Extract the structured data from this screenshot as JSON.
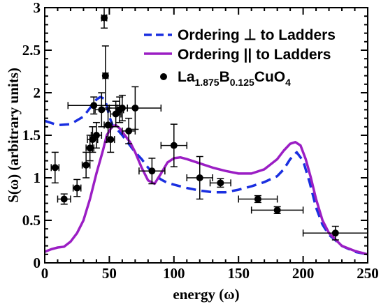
{
  "chart_data": {
    "type": "line",
    "xlabel": "energy (ω)",
    "ylabel": "S(ω) (arbitrary units)",
    "xlim": [
      0,
      250
    ],
    "ylim": [
      0,
      3
    ],
    "xticks": [
      "0",
      "50",
      "100",
      "150",
      "200",
      "250"
    ],
    "yticks": [
      "0",
      "0.5",
      "1",
      "1.5",
      "2",
      "2.5",
      "3"
    ],
    "grid": false,
    "legend_position": "top-right",
    "series": [
      {
        "name": "Ordering ⊥ to Ladders",
        "style": "dashed",
        "color": "#1a2fe0",
        "x": [
          0,
          10,
          20,
          30,
          35,
          40,
          43,
          46,
          48,
          50,
          53,
          56,
          60,
          65,
          70,
          75,
          80,
          85,
          90,
          95,
          100,
          110,
          120,
          130,
          140,
          150,
          160,
          170,
          180,
          185,
          190,
          195,
          200,
          205,
          210,
          215,
          220,
          230,
          240,
          250
        ],
        "y": [
          1.67,
          1.62,
          1.63,
          1.72,
          1.82,
          1.92,
          1.95,
          1.93,
          1.85,
          1.72,
          1.6,
          1.57,
          1.5,
          1.4,
          1.3,
          1.22,
          1.12,
          1.04,
          0.98,
          0.94,
          0.92,
          0.88,
          0.85,
          0.83,
          0.83,
          0.86,
          0.9,
          0.95,
          1.02,
          1.1,
          1.22,
          1.3,
          1.2,
          0.95,
          0.65,
          0.45,
          0.33,
          0.2,
          0.13,
          0.1
        ]
      },
      {
        "name": "Ordering || to Ladders",
        "style": "solid",
        "color": "#9b1ec4",
        "x": [
          0,
          5,
          10,
          15,
          20,
          25,
          30,
          35,
          40,
          45,
          48,
          52,
          55,
          58,
          62,
          66,
          70,
          75,
          80,
          85,
          90,
          95,
          100,
          105,
          110,
          120,
          130,
          140,
          150,
          160,
          170,
          180,
          185,
          190,
          194,
          198,
          202,
          206,
          210,
          215,
          220,
          230,
          240,
          250
        ],
        "y": [
          0.13,
          0.16,
          0.18,
          0.19,
          0.25,
          0.35,
          0.5,
          0.75,
          1.05,
          1.32,
          1.5,
          1.6,
          1.62,
          1.58,
          1.5,
          1.42,
          1.3,
          1.12,
          0.97,
          0.93,
          1.05,
          1.18,
          1.23,
          1.24,
          1.22,
          1.17,
          1.12,
          1.08,
          1.05,
          1.05,
          1.1,
          1.22,
          1.32,
          1.4,
          1.42,
          1.38,
          1.22,
          1.0,
          0.75,
          0.5,
          0.35,
          0.2,
          0.14,
          0.1
        ]
      },
      {
        "name": "La1.875B0.125CuO4",
        "style": "points",
        "color": "#000000",
        "legend_parts": [
          {
            "text": "La",
            "sub": false
          },
          {
            "text": "1.875",
            "sub": true
          },
          {
            "text": "B",
            "sub": false
          },
          {
            "text": "0.125",
            "sub": true
          },
          {
            "text": "CuO",
            "sub": false
          },
          {
            "text": "4",
            "sub": true
          }
        ],
        "points": [
          {
            "x": 8,
            "y": 1.12,
            "xerr": 3,
            "yerr": 0.18
          },
          {
            "x": 15,
            "y": 0.75,
            "xerr": 5,
            "yerr": 0.06
          },
          {
            "x": 25,
            "y": 0.88,
            "xerr": 3,
            "yerr": 0.1
          },
          {
            "x": 32,
            "y": 1.15,
            "xerr": 3,
            "yerr": 0.15
          },
          {
            "x": 35,
            "y": 1.35,
            "xerr": 3,
            "yerr": 0.15
          },
          {
            "x": 37,
            "y": 1.45,
            "xerr": 4,
            "yerr": 0.15
          },
          {
            "x": 38,
            "y": 1.85,
            "xerr": 20,
            "yerr": 0.1
          },
          {
            "x": 40,
            "y": 1.5,
            "xerr": 4,
            "yerr": 0.15
          },
          {
            "x": 44,
            "y": 1.8,
            "xerr": 5,
            "yerr": 0.2
          },
          {
            "x": 46,
            "y": 2.88,
            "xerr": 2,
            "yerr": 0.12
          },
          {
            "x": 47,
            "y": 2.2,
            "xerr": 2,
            "yerr": 0.35
          },
          {
            "x": 49,
            "y": 1.62,
            "xerr": 3,
            "yerr": 0.2
          },
          {
            "x": 51,
            "y": 1.45,
            "xerr": 3,
            "yerr": 0.15
          },
          {
            "x": 55,
            "y": 1.75,
            "xerr": 4,
            "yerr": 0.15
          },
          {
            "x": 58,
            "y": 1.8,
            "xerr": 3,
            "yerr": 0.15
          },
          {
            "x": 60,
            "y": 1.82,
            "xerr": 4,
            "yerr": 0.15
          },
          {
            "x": 65,
            "y": 1.55,
            "xerr": 5,
            "yerr": 0.15
          },
          {
            "x": 70,
            "y": 1.82,
            "xerr": 20,
            "yerr": 0.25
          },
          {
            "x": 83,
            "y": 1.08,
            "xerr": 10,
            "yerr": 0.15
          },
          {
            "x": 100,
            "y": 1.38,
            "xerr": 10,
            "yerr": 0.25
          },
          {
            "x": 120,
            "y": 1.0,
            "xerr": 10,
            "yerr": 0.25
          },
          {
            "x": 136,
            "y": 0.94,
            "xerr": 8,
            "yerr": 0.05
          },
          {
            "x": 165,
            "y": 0.75,
            "xerr": 15,
            "yerr": 0.04
          },
          {
            "x": 180,
            "y": 0.62,
            "xerr": 20,
            "yerr": 0.04
          },
          {
            "x": 225,
            "y": 0.35,
            "xerr": 25,
            "yerr": 0.08
          }
        ]
      }
    ]
  }
}
